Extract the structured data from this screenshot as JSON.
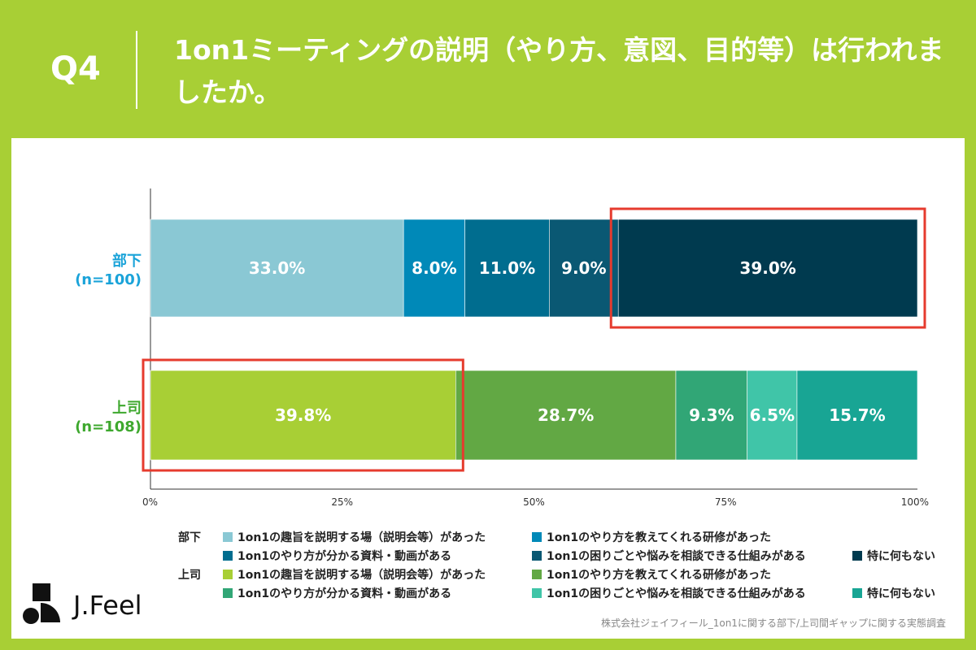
{
  "header": {
    "q_label": "Q4",
    "title": "1on1ミーティングの説明（やり方、意図、目的等）は行われましたか。"
  },
  "chart_data": {
    "type": "bar",
    "orientation": "horizontal",
    "stacked": true,
    "xlim": [
      0,
      100
    ],
    "x_ticks": [
      "0%",
      "25%",
      "50%",
      "75%",
      "100%"
    ],
    "rows": [
      {
        "group": "部下",
        "n_label": "(n=100)",
        "label_color": "#1aa3d9",
        "values": [
          33.0,
          8.0,
          11.0,
          9.0,
          39.0
        ],
        "labels": [
          "33.0%",
          "8.0%",
          "11.0%",
          "9.0%",
          "39.0%"
        ],
        "colors": [
          "#8ac8d4",
          "#0089b8",
          "#006d8f",
          "#0a5873",
          "#003a4f"
        ],
        "highlight_segment": 4
      },
      {
        "group": "上司",
        "n_label": "(n=108)",
        "label_color": "#3ea82e",
        "values": [
          39.8,
          28.7,
          9.3,
          6.5,
          15.7
        ],
        "labels": [
          "39.8%",
          "28.7%",
          "9.3%",
          "6.5%",
          "15.7%"
        ],
        "colors": [
          "#a8cf35",
          "#62a844",
          "#31a676",
          "#40c5a8",
          "#18a594"
        ],
        "highlight_segment": 0
      }
    ],
    "highlight_color": "#e63b2e",
    "categories": [
      "1on1の趣旨を説明する場（説明会等）があった",
      "1on1のやり方を教えてくれる研修があった",
      "1on1のやり方が分かる資料・動画がある",
      "1on1の困りごとや悩みを相談できる仕組みがある",
      "特に何もない"
    ]
  },
  "legend": {
    "bu_label": "部下",
    "jo_label": "上司"
  },
  "logo": {
    "text": "J.Feel"
  },
  "source": "株式会社ジェイフィール_1on1に関する部下/上司間ギャップに関する実態調査"
}
